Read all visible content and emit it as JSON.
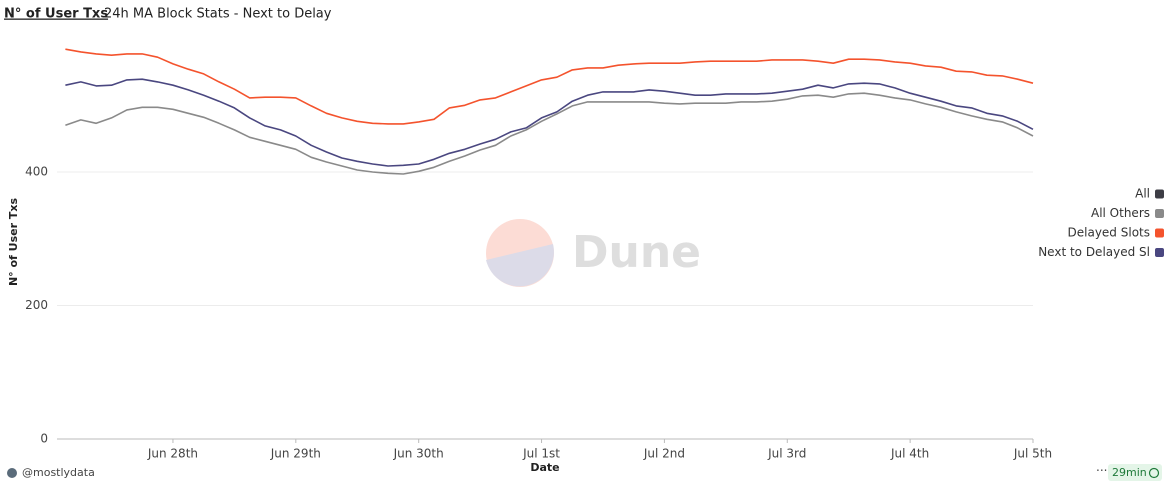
{
  "chart_data": {
    "type": "line",
    "title": "N° of User Txs",
    "subtitle": "24h MA Block Stats - Next to Delay",
    "ylabel": "N° of User Txs",
    "xlabel": "Date",
    "watermark": "Dune",
    "author": "@mostlydata",
    "freshness": "29min",
    "categories": [
      null,
      null,
      null,
      null,
      null,
      null,
      null,
      "Jun 28th",
      null,
      null,
      null,
      null,
      null,
      null,
      null,
      "Jun 29th",
      null,
      null,
      null,
      null,
      null,
      null,
      null,
      "Jun 30th",
      null,
      null,
      null,
      null,
      null,
      null,
      null,
      "Jul 1st",
      null,
      null,
      null,
      null,
      null,
      null,
      null,
      "Jul 2nd",
      null,
      null,
      null,
      null,
      null,
      null,
      null,
      "Jul 3rd",
      null,
      null,
      null,
      null,
      null,
      null,
      null,
      "Jul 4th",
      null,
      null,
      null,
      null,
      null,
      null,
      null,
      "Jul 5th"
    ],
    "series": [
      {
        "name": "All",
        "color": "#3d3d45",
        "values": [
          null,
          null,
          null,
          null,
          null,
          null,
          null,
          null,
          null,
          null,
          null,
          null,
          null,
          null,
          null,
          null,
          null,
          null,
          null,
          null,
          null,
          null,
          null,
          null,
          null,
          null,
          null,
          null,
          null,
          null,
          null,
          null,
          null,
          null,
          null,
          null,
          null,
          null,
          null,
          null,
          null,
          null,
          null,
          null,
          null,
          null,
          null,
          null,
          null,
          null,
          null,
          null,
          null,
          null,
          null,
          null,
          null,
          null,
          null,
          null,
          null,
          null,
          null,
          null
        ]
      },
      {
        "name": "All Others",
        "color": "#8a8a8a",
        "values": [
          470,
          478,
          473,
          481,
          493,
          497,
          497,
          494,
          488,
          482,
          473,
          463,
          452,
          446,
          440,
          434,
          422,
          415,
          409,
          403,
          400,
          398,
          397,
          401,
          407,
          416,
          424,
          433,
          440,
          454,
          463,
          476,
          487,
          499,
          505,
          505,
          505,
          505,
          505,
          503,
          502,
          503,
          503,
          503,
          505,
          505,
          506,
          509,
          514,
          515,
          512,
          517,
          518,
          515,
          511,
          508,
          502,
          497,
          490,
          484,
          479,
          475,
          466,
          454
        ]
      },
      {
        "name": "Delayed Slots",
        "color": "#f4532d",
        "values": [
          584,
          580,
          577,
          575,
          577,
          577,
          572,
          562,
          554,
          547,
          535,
          524,
          511,
          512,
          512,
          511,
          499,
          488,
          481,
          476,
          473,
          472,
          472,
          475,
          479,
          496,
          500,
          508,
          511,
          520,
          529,
          538,
          542,
          553,
          556,
          556,
          560,
          562,
          563,
          563,
          563,
          565,
          566,
          566,
          566,
          566,
          568,
          568,
          568,
          566,
          563,
          569,
          569,
          568,
          565,
          563,
          559,
          557,
          551,
          550,
          545,
          544,
          539,
          533
        ]
      },
      {
        "name": "Next to Delayed Sl",
        "color": "#4a4780",
        "values": [
          530,
          535,
          529,
          530,
          538,
          539,
          535,
          530,
          523,
          515,
          506,
          496,
          481,
          469,
          463,
          454,
          440,
          430,
          421,
          416,
          412,
          409,
          410,
          412,
          419,
          428,
          434,
          442,
          449,
          460,
          466,
          481,
          490,
          506,
          515,
          520,
          520,
          520,
          523,
          521,
          518,
          515,
          515,
          517,
          517,
          517,
          518,
          521,
          524,
          530,
          526,
          532,
          533,
          532,
          526,
          518,
          512,
          506,
          499,
          496,
          488,
          484,
          476,
          464
        ]
      }
    ],
    "ylim": [
      0,
      600
    ],
    "yticks": [
      0,
      200,
      400
    ],
    "grid": true,
    "legend": "right"
  }
}
